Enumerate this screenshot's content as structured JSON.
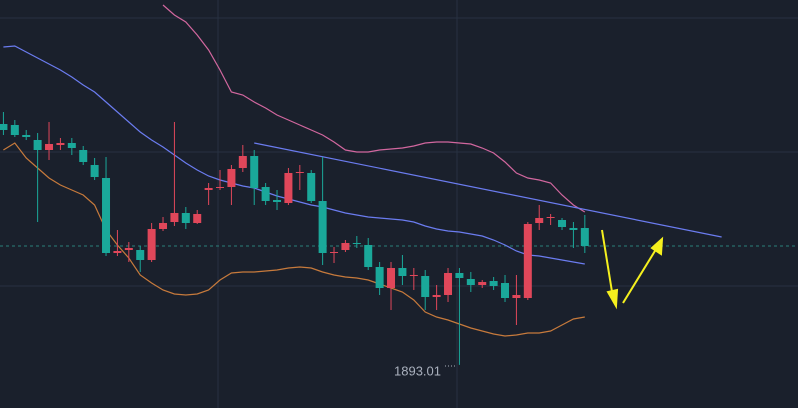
{
  "chart_data": {
    "type": "candlestick",
    "ylim": [
      1888.7,
      1929.5
    ],
    "xlim": [
      -0.3,
      69.7
    ],
    "up_color": "#e0475a",
    "down_color": "#1aa89a",
    "open": [
      1917.1,
      1917.0,
      1916.0,
      1915.5,
      1914.5,
      1915.0,
      1915.2,
      1914.5,
      1913.0,
      1911.7,
      1904.2,
      1904.5,
      1904.5,
      1903.5,
      1906.6,
      1907.3,
      1908.2,
      1907.2,
      1910.5,
      1910.7,
      1910.8,
      1912.7,
      1913.9,
      1910.8,
      1909.5,
      1909.2,
      1912.2,
      1912.2,
      1909.4,
      1904.2,
      1904.5,
      1905.2,
      1905.0,
      1902.8,
      1900.7,
      1902.7,
      1901.9,
      1901.9,
      1899.8,
      1900.0,
      1902.2,
      1901.6,
      1901.0,
      1901.4,
      1901.2,
      1899.7,
      1899.7,
      1907.2,
      1907.7,
      1907.5,
      1906.7,
      1906.7
    ],
    "high": [
      1918.3,
      1917.5,
      1916.5,
      1916.2,
      1917.3,
      1915.7,
      1915.7,
      1914.9,
      1913.7,
      1913.8,
      1906.5,
      1905.3,
      1904.9,
      1907.2,
      1907.8,
      1917.3,
      1908.8,
      1908.5,
      1911.2,
      1912.5,
      1913.0,
      1915.0,
      1914.5,
      1911.2,
      1910.5,
      1912.7,
      1913.0,
      1912.5,
      1913.8,
      1904.8,
      1905.5,
      1905.9,
      1905.7,
      1903.3,
      1903.3,
      1904.0,
      1902.7,
      1902.5,
      1901.0,
      1902.7,
      1902.7,
      1902.3,
      1901.5,
      1901.8,
      1902.0,
      1902.0,
      1907.3,
      1909.0,
      1908.1,
      1907.7,
      1907.3,
      1908.0
    ],
    "low": [
      1916.0,
      1915.8,
      1915.5,
      1907.3,
      1913.5,
      1914.5,
      1914.0,
      1913.0,
      1911.5,
      1903.9,
      1903.9,
      1903.3,
      1902.3,
      1903.3,
      1906.4,
      1906.9,
      1906.6,
      1907.1,
      1909.0,
      1910.5,
      1909.0,
      1912.3,
      1909.0,
      1909.0,
      1908.5,
      1909.0,
      1910.5,
      1909.2,
      1903.0,
      1903.2,
      1904.3,
      1904.7,
      1902.5,
      1900.0,
      1898.5,
      1901.0,
      1900.5,
      1898.5,
      1898.5,
      1899.3,
      1893.01,
      1900.3,
      1900.7,
      1900.5,
      1899.3,
      1897.0,
      1899.5,
      1906.5,
      1907.0,
      1906.5,
      1904.7,
      1904.2
    ],
    "close": [
      1916.5,
      1916.0,
      1915.8,
      1914.5,
      1915.1,
      1915.2,
      1914.7,
      1913.3,
      1911.8,
      1904.2,
      1904.4,
      1904.7,
      1903.5,
      1906.6,
      1907.2,
      1908.2,
      1907.2,
      1908.1,
      1910.7,
      1910.8,
      1912.6,
      1913.9,
      1910.7,
      1909.4,
      1909.3,
      1912.2,
      1912.3,
      1909.4,
      1904.2,
      1904.3,
      1905.2,
      1905.1,
      1902.8,
      1900.7,
      1902.7,
      1901.9,
      1902.0,
      1899.8,
      1900.0,
      1902.2,
      1901.7,
      1901.0,
      1901.3,
      1900.9,
      1899.7,
      1900.0,
      1907.1,
      1907.7,
      1907.8,
      1906.8,
      1906.5,
      1904.9
    ],
    "series": [
      {
        "color": "#d2679f",
        "values": [
          null,
          null,
          null,
          null,
          null,
          null,
          null,
          null,
          null,
          null,
          null,
          null,
          null,
          null,
          1929.0,
          1928.0,
          1927.3,
          1926.0,
          1924.5,
          1922.5,
          1920.3,
          1920.0,
          1919.3,
          1918.7,
          1918.0,
          1917.5,
          1917.0,
          1916.5,
          1916.0,
          1915.3,
          1914.5,
          1914.3,
          1914.3,
          1914.5,
          1914.6,
          1914.7,
          1914.9,
          1915.2,
          1915.3,
          1915.3,
          1915.2,
          1915.1,
          1914.7,
          1914.2,
          1913.3,
          1912.2,
          1911.7,
          1911.5,
          1911.2,
          1910.0,
          1909.0,
          1908.3
        ]
      },
      {
        "color": "#6b7cf0",
        "values": [
          1924.8,
          1924.9,
          1924.3,
          1923.7,
          1923.1,
          1922.5,
          1921.8,
          1921.0,
          1920.3,
          1919.3,
          1918.3,
          1917.3,
          1916.3,
          1915.5,
          1914.8,
          1914.0,
          1913.2,
          1912.5,
          1911.9,
          1911.5,
          1911.2,
          1910.9,
          1910.7,
          1910.3,
          1909.9,
          1909.6,
          1909.3,
          1909.0,
          1908.8,
          1908.5,
          1908.2,
          1908.0,
          1907.8,
          1907.7,
          1907.6,
          1907.5,
          1907.3,
          1906.9,
          1906.6,
          1906.4,
          1906.3,
          1906.1,
          1905.9,
          1905.5,
          1905.0,
          1904.4,
          1904.0,
          1903.9,
          1903.7,
          1903.5,
          1903.3,
          1903.1
        ]
      },
      {
        "color": "#c77a3c",
        "values": [
          1914.5,
          1915.2,
          1913.7,
          1912.7,
          1911.7,
          1911.0,
          1910.5,
          1910.0,
          1909.0,
          1906.5,
          1905.0,
          1903.7,
          1902.0,
          1901.2,
          1900.5,
          1900.1,
          1900.0,
          1900.1,
          1900.5,
          1901.5,
          1902.2,
          1902.3,
          1902.3,
          1902.4,
          1902.5,
          1902.7,
          1902.8,
          1902.7,
          1902.3,
          1902.0,
          1901.8,
          1901.7,
          1901.5,
          1901.1,
          1900.7,
          1900.3,
          1899.5,
          1898.3,
          1897.8,
          1897.5,
          1897.1,
          1896.7,
          1896.4,
          1896.1,
          1895.9,
          1896.0,
          1896.2,
          1896.2,
          1896.4,
          1897.0,
          1897.6,
          1897.8
        ]
      }
    ],
    "trend_line": {
      "x": [
        22,
        63
      ],
      "values": [
        1915.2,
        1905.8
      ],
      "color": "#6b7cf0"
    },
    "price_line": 1904.9
  }
}
